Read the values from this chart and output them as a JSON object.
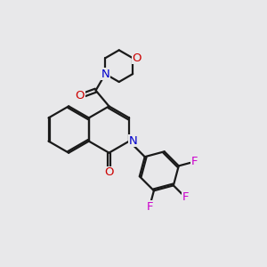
{
  "background_color": "#e8e8ea",
  "bond_color": "#1a1a1a",
  "N_color": "#0000cc",
  "O_color": "#cc0000",
  "F_color": "#cc00cc",
  "bond_lw": 1.6,
  "dbo": 0.07,
  "figsize": [
    3.0,
    3.0
  ],
  "dpi": 100,
  "xlim": [
    0,
    10
  ],
  "ylim": [
    0,
    10
  ],
  "BL": 0.88
}
